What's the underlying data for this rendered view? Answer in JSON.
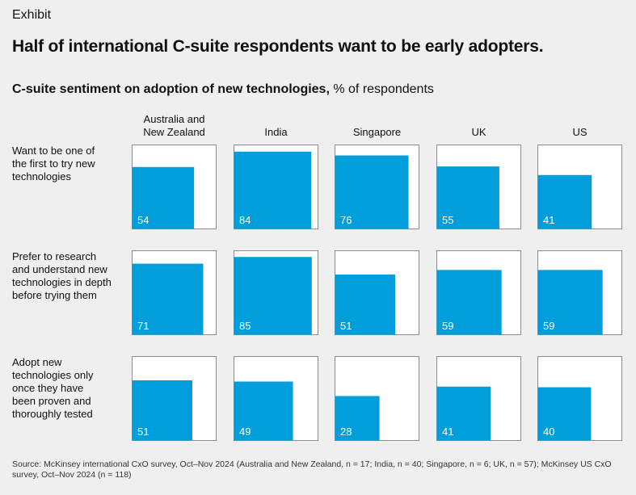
{
  "header": {
    "eyebrow": "Exhibit",
    "headline": "Half of international C-suite respondents want to be early adopters."
  },
  "chart_data": {
    "type": "bar",
    "title": "C-suite sentiment on adoption of new technologies,",
    "unit_label": "% of respondents",
    "columns": [
      {
        "lines": [
          "Australia and",
          "New Zealand"
        ]
      },
      {
        "lines": [
          "India"
        ]
      },
      {
        "lines": [
          "Singapore"
        ]
      },
      {
        "lines": [
          "UK"
        ]
      },
      {
        "lines": [
          "US"
        ]
      }
    ],
    "rows": [
      {
        "lines": [
          "Want to be one of",
          "the first to try new",
          "technologies"
        ],
        "values": [
          54,
          84,
          76,
          55,
          41
        ]
      },
      {
        "lines": [
          "Prefer to research",
          "and understand new",
          "technologies in depth",
          "before trying them"
        ],
        "values": [
          71,
          85,
          51,
          59,
          59
        ]
      },
      {
        "lines": [
          "Adopt new",
          "technologies only",
          "once they have",
          "been proven and",
          "thoroughly tested"
        ],
        "values": [
          51,
          49,
          28,
          41,
          40
        ]
      }
    ],
    "max": 100,
    "bar_color": "#009fdb"
  },
  "footnote": "Source: McKinsey international CxO survey, Oct–Nov 2024 (Australia and New Zealand, n = 17; India, n = 40; Singapore, n = 6; UK, n = 57); McKinsey US CxO survey, Oct–Nov 2024 (n = 118)"
}
